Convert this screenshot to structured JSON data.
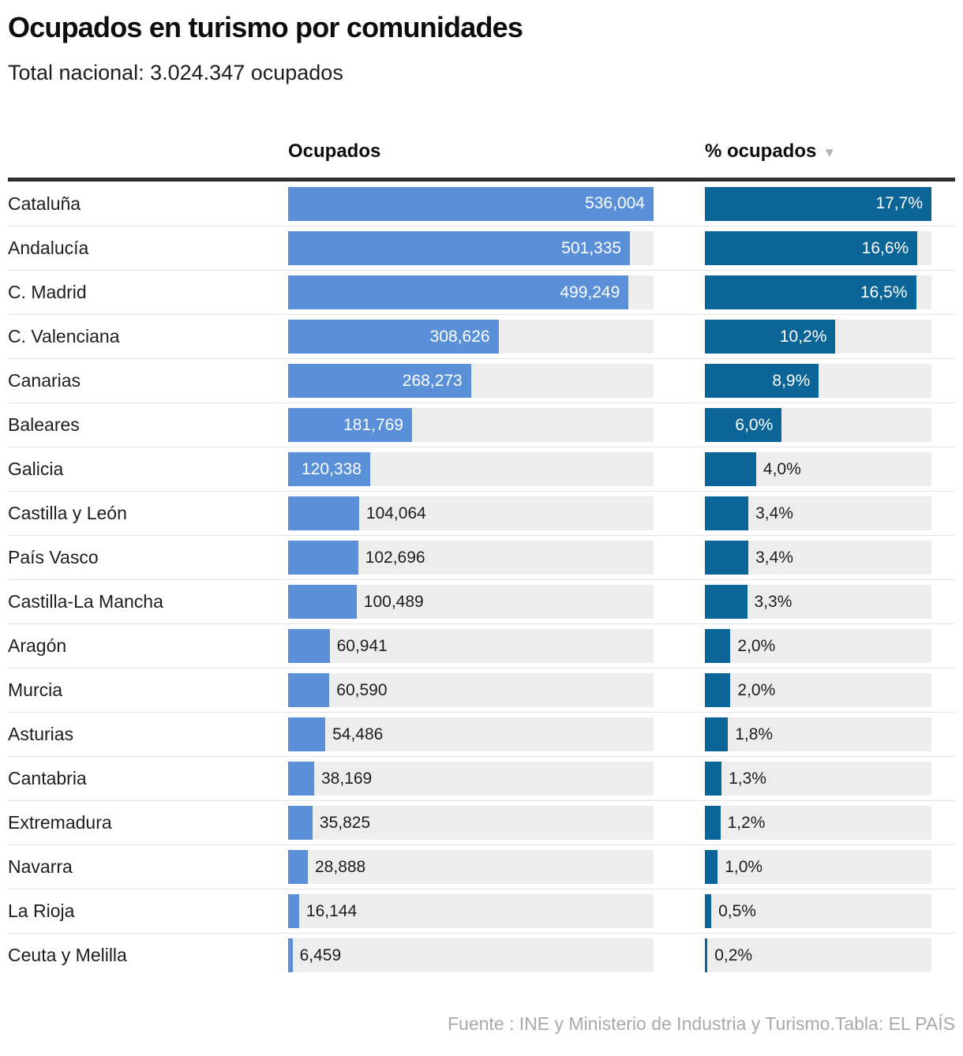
{
  "title": "Ocupados en turismo por comunidades",
  "subtitle": "Total nacional: 3.024.347 ocupados",
  "columns": {
    "ocupados_label": "Ocupados",
    "pct_label": "% ocupados",
    "sort_icon": "▼"
  },
  "footer": "Fuente : INE y Ministerio de Industria y Turismo.Tabla: EL PAÍS",
  "colors": {
    "bar_light_blue": "#5A90D8",
    "bar_dark_blue": "#0B6597",
    "track_gray": "#EDEDED",
    "header_rule": "#2E2E2E"
  },
  "chart_data": {
    "type": "bar",
    "orientation": "horizontal",
    "title": "Ocupados en turismo por comunidades",
    "subtitle": "Total nacional: 3.024.347 ocupados",
    "categories": [
      "Cataluña",
      "Andalucía",
      "C. Madrid",
      "C. Valenciana",
      "Canarias",
      "Baleares",
      "Galicia",
      "Castilla y León",
      "País Vasco",
      "Castilla-La Mancha",
      "Aragón",
      "Murcia",
      "Asturias",
      "Cantabria",
      "Extremadura",
      "Navarra",
      "La Rioja",
      "Ceuta y Melilla"
    ],
    "series": [
      {
        "name": "Ocupados",
        "values": [
          536004,
          501335,
          499249,
          308626,
          268273,
          181769,
          120338,
          104064,
          102696,
          100489,
          60941,
          60590,
          54486,
          38169,
          35825,
          28888,
          16144,
          6459
        ],
        "labels": [
          "536,004",
          "501,335",
          "499,249",
          "308,626",
          "268,273",
          "181,769",
          "120,338",
          "104,064",
          "102,696",
          "100,489",
          "60,941",
          "60,590",
          "54,486",
          "38,169",
          "35,825",
          "28,888",
          "16,144",
          "6,459"
        ],
        "max": 536004
      },
      {
        "name": "% ocupados",
        "values": [
          17.7,
          16.6,
          16.5,
          10.2,
          8.9,
          6.0,
          4.0,
          3.4,
          3.4,
          3.3,
          2.0,
          2.0,
          1.8,
          1.3,
          1.2,
          1.0,
          0.5,
          0.2
        ],
        "labels": [
          "17,7%",
          "16,6%",
          "16,5%",
          "10,2%",
          "8,9%",
          "6,0%",
          "4,0%",
          "3,4%",
          "3,4%",
          "3,3%",
          "2,0%",
          "2,0%",
          "1,8%",
          "1,3%",
          "1,2%",
          "1,0%",
          "0,5%",
          "0,2%"
        ],
        "max": 17.7
      }
    ],
    "sorted_by": "% ocupados",
    "sort_direction": "descending",
    "legend": "none",
    "grid": "off"
  }
}
